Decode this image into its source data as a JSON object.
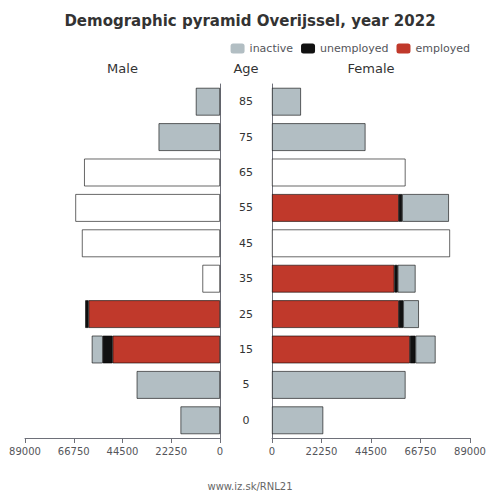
{
  "title": "Demographic pyramid Overijssel, year 2022",
  "ylabel": "Age",
  "annotations": [
    "www.iz.sk/RNL21"
  ],
  "chart_data": [
    {
      "type": "bar",
      "title": "Male",
      "orientation": "horizontal",
      "stacked": true,
      "grid": false,
      "categories": [
        "85",
        "75",
        "65",
        "55",
        "45",
        "35",
        "25",
        "15",
        "5",
        "0"
      ],
      "xlim": [
        89000,
        0
      ],
      "xticks": [
        89000,
        66750,
        44500,
        22250,
        0
      ],
      "series": [
        {
          "name": "inactive",
          "color": "#b2bec3",
          "values": [
            11000,
            28000,
            0,
            0,
            0,
            0,
            0,
            5000,
            38000,
            18000
          ]
        },
        {
          "name": "unemployed",
          "color": "#111111",
          "values": [
            0,
            0,
            0,
            0,
            0,
            0,
            1500,
            4500,
            0,
            0
          ]
        },
        {
          "name": "employed",
          "color": "#c0392b",
          "values": [
            0,
            0,
            0,
            0,
            0,
            0,
            60000,
            49000,
            0,
            0
          ]
        },
        {
          "color": "#ffffff",
          "values": [
            0,
            0,
            62000,
            66000,
            63000,
            8000,
            0,
            0,
            0,
            0
          ]
        }
      ]
    },
    {
      "type": "bar",
      "title": "Female",
      "orientation": "horizontal",
      "stacked": true,
      "grid": false,
      "legend": "upper right",
      "categories": [
        "85",
        "75",
        "65",
        "55",
        "45",
        "35",
        "25",
        "15",
        "5",
        "0"
      ],
      "xlim": [
        0,
        89000
      ],
      "xticks": [
        0,
        22250,
        44500,
        66750,
        89000
      ],
      "series": [
        {
          "name": "inactive",
          "color": "#b2bec3",
          "values": [
            13000,
            42000,
            0,
            21000,
            0,
            8000,
            7000,
            9000,
            60000,
            23000
          ]
        },
        {
          "name": "unemployed",
          "color": "#111111",
          "values": [
            0,
            0,
            0,
            1500,
            0,
            1500,
            2000,
            2500,
            0,
            0
          ]
        },
        {
          "name": "employed",
          "color": "#c0392b",
          "values": [
            0,
            0,
            0,
            57000,
            0,
            55000,
            57000,
            62000,
            0,
            0
          ]
        },
        {
          "color": "#ffffff",
          "values": [
            0,
            0,
            60000,
            0,
            80000,
            0,
            0,
            0,
            0,
            0
          ]
        }
      ]
    }
  ]
}
